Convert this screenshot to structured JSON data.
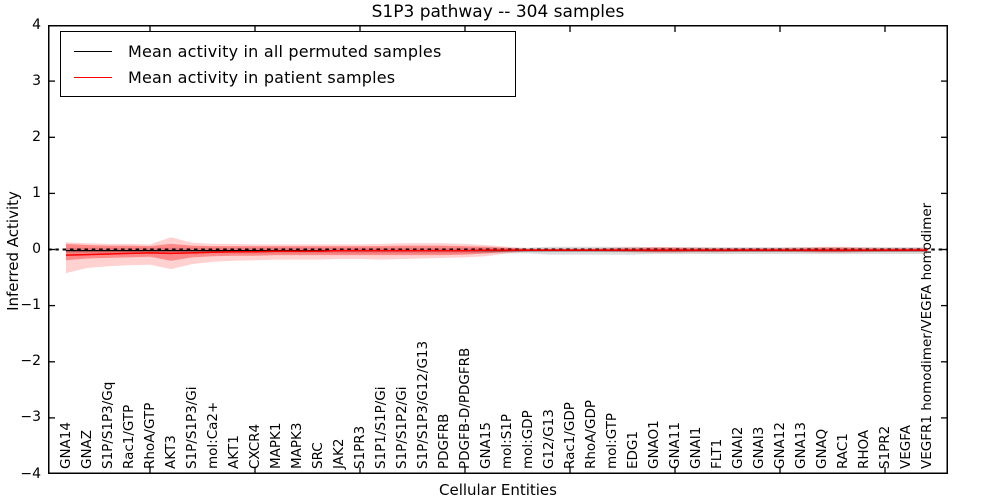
{
  "title": "S1P3 pathway -- 304 samples",
  "axes": {
    "ylabel": "Inferred Activity",
    "xlabel": "Cellular Entities",
    "ytick_labels": [
      "4",
      "3",
      "2",
      "1",
      "0",
      "−1",
      "−2",
      "−3",
      "−4"
    ]
  },
  "legend": {
    "entries": [
      {
        "label": "Mean activity in all permuted samples",
        "color": "#000000"
      },
      {
        "label": "Mean activity in patient samples",
        "color": "#ff0000"
      }
    ]
  },
  "chart_data": {
    "type": "line",
    "title": "S1P3 pathway -- 304 samples",
    "xlabel": "Cellular Entities",
    "ylabel": "Inferred Activity",
    "ylim": [
      -4,
      4
    ],
    "yticks": [
      4,
      3,
      2,
      1,
      0,
      -1,
      -2,
      -3,
      -4
    ],
    "xtick_positions": [
      5,
      10,
      15,
      20,
      25,
      30,
      35,
      40
    ],
    "grid": false,
    "legend_position": "upper left",
    "zero_line": {
      "style": "dashed",
      "color": "#000000",
      "y": 0
    },
    "categories": [
      "GNA14",
      "GNAZ",
      "S1P/S1P3/Gq",
      "Rac1/GTP",
      "RhoA/GTP",
      "AKT3",
      "S1P/S1P3/Gi",
      "mol:Ca2+",
      "AKT1",
      "CXCR4",
      "MAPK1",
      "MAPK3",
      "SRC",
      "JAK2",
      "S1PR3",
      "S1P1/S1P/Gi",
      "S1P/S1P2/Gi",
      "S1P/S1P3/G12/G13",
      "PDGFRB",
      "PDGFB-D/PDGFRB",
      "GNA15",
      "mol:S1P",
      "mol:GDP",
      "G12/G13",
      "Rac1/GDP",
      "RhoA/GDP",
      "mol:GTP",
      "EDG1",
      "GNAO1",
      "GNA11",
      "GNAI1",
      "FLT1",
      "GNAI2",
      "GNAI3",
      "GNA12",
      "GNA13",
      "GNAQ",
      "RAC1",
      "RHOA",
      "S1PR2",
      "VEGFA",
      "VEGFR1 homodimer/VEGFA homodimer"
    ],
    "series": [
      {
        "name": "Mean activity in all permuted samples",
        "color": "#000000",
        "values": [
          -0.02,
          -0.02,
          -0.02,
          -0.02,
          -0.02,
          -0.02,
          -0.02,
          -0.02,
          -0.02,
          -0.02,
          -0.02,
          -0.02,
          -0.02,
          -0.02,
          -0.02,
          -0.02,
          -0.02,
          -0.02,
          -0.02,
          -0.02,
          -0.02,
          -0.02,
          -0.02,
          -0.02,
          -0.02,
          -0.02,
          -0.02,
          -0.02,
          -0.02,
          -0.02,
          -0.02,
          -0.02,
          -0.02,
          -0.02,
          -0.02,
          -0.02,
          -0.02,
          -0.02,
          -0.02,
          -0.02,
          -0.02,
          -0.02
        ]
      },
      {
        "name": "Mean activity in patient samples",
        "color": "#ff0000",
        "values": [
          -0.1,
          -0.09,
          -0.08,
          -0.07,
          -0.06,
          -0.07,
          -0.06,
          -0.05,
          -0.04,
          -0.04,
          -0.03,
          -0.03,
          -0.03,
          -0.02,
          -0.02,
          -0.02,
          -0.02,
          -0.02,
          -0.02,
          -0.02,
          -0.01,
          -0.01,
          -0.01,
          -0.01,
          -0.01,
          -0.01,
          -0.01,
          -0.01,
          -0.01,
          -0.01,
          -0.01,
          -0.01,
          -0.01,
          -0.01,
          -0.01,
          -0.01,
          -0.01,
          -0.01,
          -0.01,
          -0.01,
          -0.01,
          -0.01
        ]
      }
    ],
    "bands": [
      {
        "name": "permuted-sample-range",
        "color": "#999999",
        "opacity": 0.35,
        "upper": [
          0.03,
          0.03,
          0.03,
          0.03,
          0.03,
          0.03,
          0.03,
          0.03,
          0.03,
          0.03,
          0.03,
          0.03,
          0.03,
          0.03,
          0.03,
          0.03,
          0.03,
          0.03,
          0.03,
          0.03,
          0.03,
          0.03,
          0.03,
          0.05,
          0.05,
          0.05,
          0.05,
          0.05,
          0.04,
          0.04,
          0.04,
          0.04,
          0.04,
          0.04,
          0.04,
          0.04,
          0.04,
          0.04,
          0.04,
          0.04,
          0.04,
          0.04
        ],
        "lower": [
          -0.07,
          -0.07,
          -0.07,
          -0.07,
          -0.07,
          -0.07,
          -0.07,
          -0.07,
          -0.07,
          -0.07,
          -0.07,
          -0.07,
          -0.07,
          -0.07,
          -0.07,
          -0.07,
          -0.07,
          -0.07,
          -0.07,
          -0.07,
          -0.07,
          -0.07,
          -0.07,
          -0.09,
          -0.09,
          -0.09,
          -0.09,
          -0.09,
          -0.08,
          -0.08,
          -0.08,
          -0.08,
          -0.08,
          -0.08,
          -0.08,
          -0.08,
          -0.08,
          -0.08,
          -0.08,
          -0.08,
          -0.08,
          -0.08
        ]
      },
      {
        "name": "patient-sample-range-outer",
        "color": "#ff0000",
        "opacity": 0.18,
        "upper": [
          0.13,
          0.11,
          0.1,
          0.1,
          0.09,
          0.22,
          0.12,
          0.1,
          0.1,
          0.09,
          0.09,
          0.09,
          0.09,
          0.09,
          0.09,
          0.1,
          0.11,
          0.11,
          0.11,
          0.1,
          0.08,
          0.05,
          0.02,
          0.02,
          0.02,
          0.02,
          0.03,
          0.04,
          0.05,
          0.04,
          0.04,
          0.03,
          0.03,
          0.03,
          0.03,
          0.04,
          0.05,
          0.05,
          0.04,
          0.03,
          0.03,
          0.03
        ],
        "lower": [
          -0.42,
          -0.33,
          -0.3,
          -0.28,
          -0.27,
          -0.35,
          -0.26,
          -0.22,
          -0.2,
          -0.19,
          -0.18,
          -0.18,
          -0.18,
          -0.17,
          -0.17,
          -0.18,
          -0.17,
          -0.16,
          -0.15,
          -0.14,
          -0.12,
          -0.07,
          -0.03,
          -0.03,
          -0.03,
          -0.03,
          -0.04,
          -0.05,
          -0.06,
          -0.06,
          -0.05,
          -0.05,
          -0.04,
          -0.04,
          -0.04,
          -0.05,
          -0.06,
          -0.06,
          -0.05,
          -0.04,
          -0.04,
          -0.04
        ]
      },
      {
        "name": "patient-sample-range-inner",
        "color": "#ff0000",
        "opacity": 0.34,
        "upper": [
          0.1,
          0.08,
          0.07,
          0.07,
          0.06,
          0.1,
          0.07,
          0.06,
          0.06,
          0.06,
          0.06,
          0.06,
          0.06,
          0.06,
          0.06,
          0.06,
          0.07,
          0.07,
          0.07,
          0.06,
          0.05,
          0.03,
          0.01,
          0.01,
          0.01,
          0.01,
          0.02,
          0.02,
          0.03,
          0.03,
          0.02,
          0.02,
          0.02,
          0.02,
          0.02,
          0.02,
          0.03,
          0.03,
          0.02,
          0.02,
          0.02,
          0.02
        ],
        "lower": [
          -0.19,
          -0.16,
          -0.15,
          -0.14,
          -0.13,
          -0.2,
          -0.14,
          -0.12,
          -0.11,
          -0.11,
          -0.1,
          -0.1,
          -0.1,
          -0.1,
          -0.1,
          -0.1,
          -0.1,
          -0.1,
          -0.1,
          -0.09,
          -0.07,
          -0.04,
          -0.02,
          -0.02,
          -0.02,
          -0.02,
          -0.02,
          -0.03,
          -0.04,
          -0.04,
          -0.03,
          -0.03,
          -0.03,
          -0.03,
          -0.03,
          -0.03,
          -0.04,
          -0.04,
          -0.03,
          -0.03,
          -0.03,
          -0.03
        ]
      }
    ]
  }
}
